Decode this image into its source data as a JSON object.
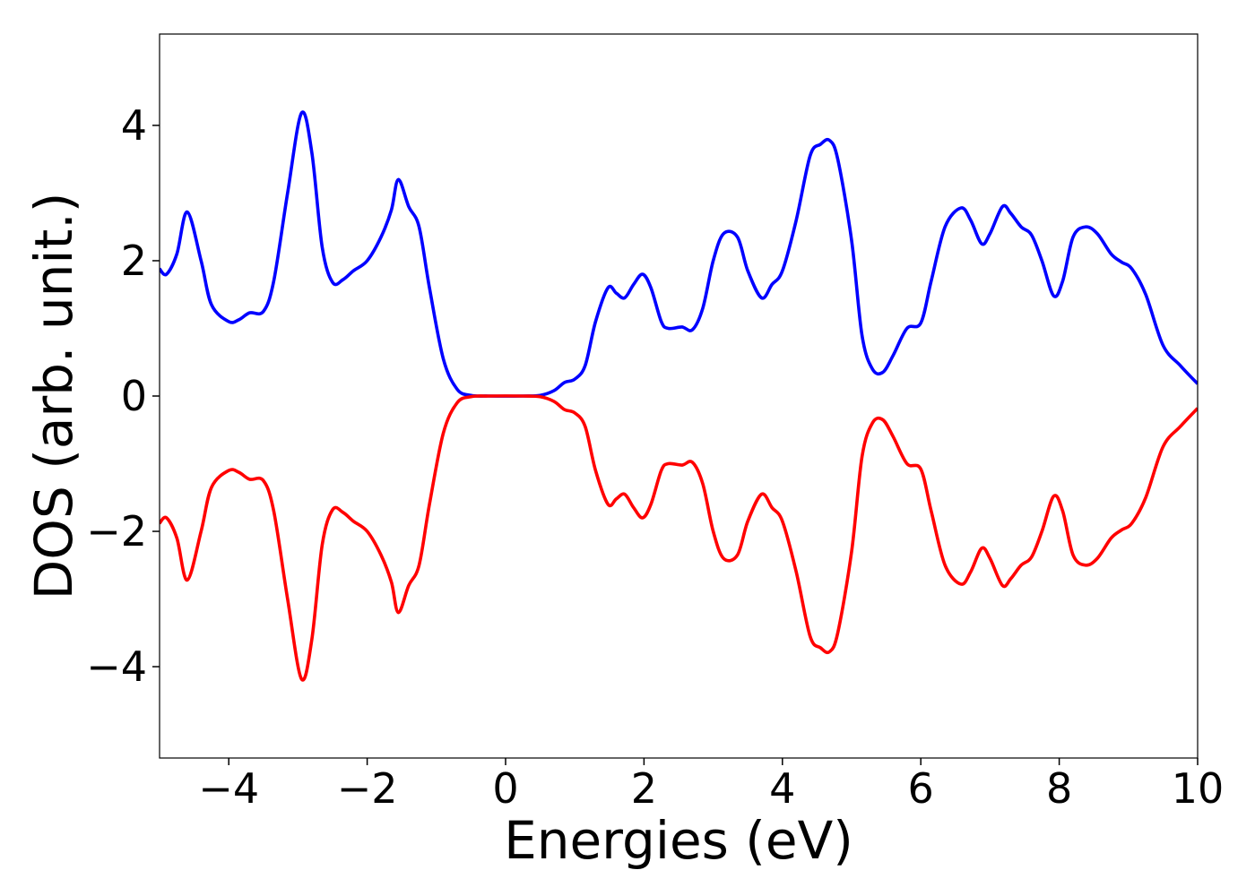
{
  "chart_data": {
    "type": "line",
    "xlabel": "Energies (eV)",
    "ylabel": "DOS (arb. unit.)",
    "xlim": [
      -5,
      10
    ],
    "ylim": [
      -5.35,
      5.35
    ],
    "xticks": [
      {
        "value": -4,
        "label": "−4"
      },
      {
        "value": -2,
        "label": "−2"
      },
      0,
      2,
      4,
      6,
      8,
      10
    ],
    "yticks": [
      {
        "value": -4,
        "label": "−4"
      },
      {
        "value": -2,
        "label": "−2"
      },
      0,
      2,
      4
    ],
    "grid": false,
    "x": [
      -5,
      -4.9,
      -4.75,
      -4.6,
      -4.4,
      -4.25,
      -4.0,
      -3.85,
      -3.7,
      -3.5,
      -3.35,
      -3.15,
      -2.95,
      -2.8,
      -2.65,
      -2.5,
      -2.35,
      -2.2,
      -2.0,
      -1.8,
      -1.65,
      -1.55,
      -1.4,
      -1.25,
      -1.1,
      -0.9,
      -0.7,
      -0.5,
      -0.25,
      0.25,
      0.5,
      0.7,
      0.85,
      1.0,
      1.15,
      1.3,
      1.48,
      1.6,
      1.72,
      1.85,
      1.98,
      2.1,
      2.25,
      2.35,
      2.55,
      2.7,
      2.85,
      3.0,
      3.15,
      3.35,
      3.5,
      3.7,
      3.85,
      4.0,
      4.2,
      4.4,
      4.55,
      4.68,
      4.8,
      5.0,
      5.15,
      5.3,
      5.45,
      5.6,
      5.8,
      6.0,
      6.15,
      6.35,
      6.58,
      6.72,
      6.88,
      7.0,
      7.18,
      7.3,
      7.45,
      7.6,
      7.75,
      7.92,
      8.05,
      8.2,
      8.38,
      8.55,
      8.75,
      8.9,
      9.05,
      9.25,
      9.5,
      9.75,
      10.0
    ],
    "series": [
      {
        "color": "#0000ff",
        "values": [
          1.88,
          1.8,
          2.1,
          2.72,
          2.0,
          1.35,
          1.1,
          1.13,
          1.23,
          1.25,
          1.7,
          3.0,
          4.18,
          3.6,
          2.2,
          1.68,
          1.72,
          1.85,
          2.0,
          2.35,
          2.75,
          3.2,
          2.8,
          2.5,
          1.6,
          0.55,
          0.1,
          0.01,
          0,
          0,
          0.01,
          0.08,
          0.2,
          0.25,
          0.45,
          1.1,
          1.6,
          1.52,
          1.45,
          1.65,
          1.8,
          1.6,
          1.1,
          1.0,
          1.02,
          0.98,
          1.3,
          2.0,
          2.4,
          2.35,
          1.85,
          1.45,
          1.65,
          1.85,
          2.6,
          3.55,
          3.72,
          3.78,
          3.5,
          2.3,
          0.9,
          0.4,
          0.35,
          0.6,
          1.0,
          1.08,
          1.7,
          2.5,
          2.78,
          2.6,
          2.25,
          2.4,
          2.8,
          2.7,
          2.5,
          2.38,
          2.0,
          1.48,
          1.7,
          2.35,
          2.5,
          2.4,
          2.1,
          1.98,
          1.88,
          1.5,
          0.75,
          0.45,
          0.18
        ]
      },
      {
        "color": "#ff0000",
        "values": [
          -1.88,
          -1.8,
          -2.1,
          -2.72,
          -2.0,
          -1.35,
          -1.1,
          -1.13,
          -1.23,
          -1.25,
          -1.7,
          -3.0,
          -4.18,
          -3.6,
          -2.2,
          -1.68,
          -1.72,
          -1.85,
          -2.0,
          -2.35,
          -2.75,
          -3.2,
          -2.8,
          -2.5,
          -1.6,
          -0.55,
          -0.1,
          -0.01,
          0,
          0,
          -0.01,
          -0.08,
          -0.2,
          -0.25,
          -0.45,
          -1.1,
          -1.6,
          -1.52,
          -1.45,
          -1.65,
          -1.8,
          -1.6,
          -1.1,
          -1.0,
          -1.02,
          -0.98,
          -1.3,
          -2.0,
          -2.4,
          -2.35,
          -1.85,
          -1.45,
          -1.65,
          -1.85,
          -2.6,
          -3.55,
          -3.72,
          -3.78,
          -3.5,
          -2.3,
          -0.9,
          -0.4,
          -0.35,
          -0.6,
          -1.0,
          -1.08,
          -1.7,
          -2.5,
          -2.78,
          -2.6,
          -2.25,
          -2.4,
          -2.8,
          -2.7,
          -2.5,
          -2.38,
          -2.0,
          -1.48,
          -1.7,
          -2.35,
          -2.5,
          -2.4,
          -2.1,
          -1.98,
          -1.88,
          -1.5,
          -0.75,
          -0.45,
          -0.18
        ]
      }
    ]
  }
}
